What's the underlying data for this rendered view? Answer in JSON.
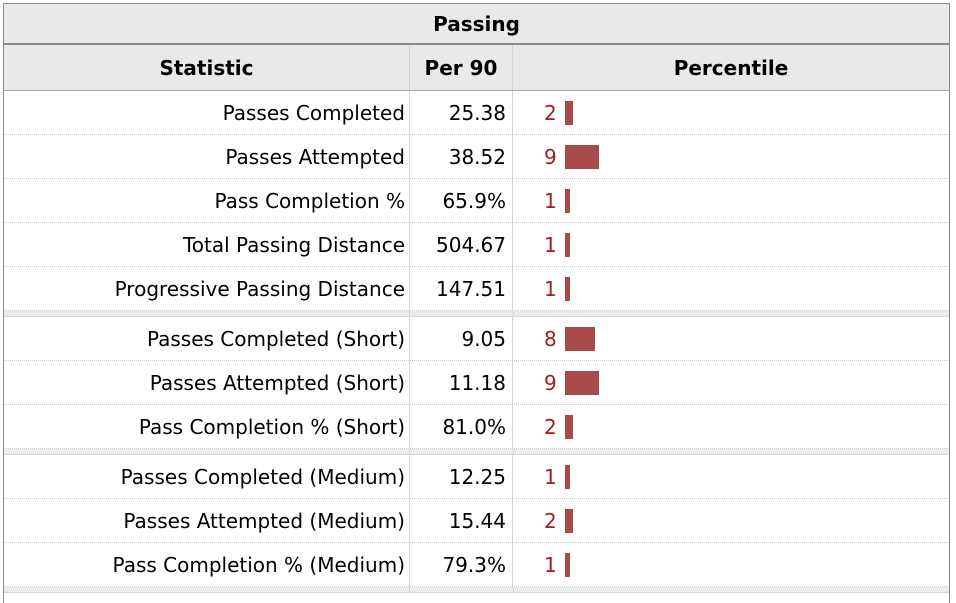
{
  "table": {
    "group_header": "Passing",
    "columns": [
      "Statistic",
      "Per 90",
      "Percentile"
    ],
    "groups": [
      [
        {
          "stat": "Passes Completed",
          "per90": "25.38",
          "percentile": "2",
          "percentile_value": 2
        },
        {
          "stat": "Passes Attempted",
          "per90": "38.52",
          "percentile": "9",
          "percentile_value": 9
        },
        {
          "stat": "Pass Completion %",
          "per90": "65.9%",
          "percentile": "1",
          "percentile_value": 1
        },
        {
          "stat": "Total Passing Distance",
          "per90": "504.67",
          "percentile": "1",
          "percentile_value": 1
        },
        {
          "stat": "Progressive Passing Distance",
          "per90": "147.51",
          "percentile": "1",
          "percentile_value": 1
        }
      ],
      [
        {
          "stat": "Passes Completed (Short)",
          "per90": "9.05",
          "percentile": "8",
          "percentile_value": 8
        },
        {
          "stat": "Passes Attempted (Short)",
          "per90": "11.18",
          "percentile": "9",
          "percentile_value": 9
        },
        {
          "stat": "Pass Completion % (Short)",
          "per90": "81.0%",
          "percentile": "2",
          "percentile_value": 2
        }
      ],
      [
        {
          "stat": "Passes Completed (Medium)",
          "per90": "12.25",
          "percentile": "1",
          "percentile_value": 1
        },
        {
          "stat": "Passes Attempted (Medium)",
          "per90": "15.44",
          "percentile": "2",
          "percentile_value": 2
        },
        {
          "stat": "Pass Completion % (Medium)",
          "per90": "79.3%",
          "percentile": "1",
          "percentile_value": 1
        }
      ]
    ],
    "colors": {
      "percentile_text": "#9c1d1d",
      "bar": "#a84a4a",
      "header_bg": "#e9e9e9"
    }
  }
}
